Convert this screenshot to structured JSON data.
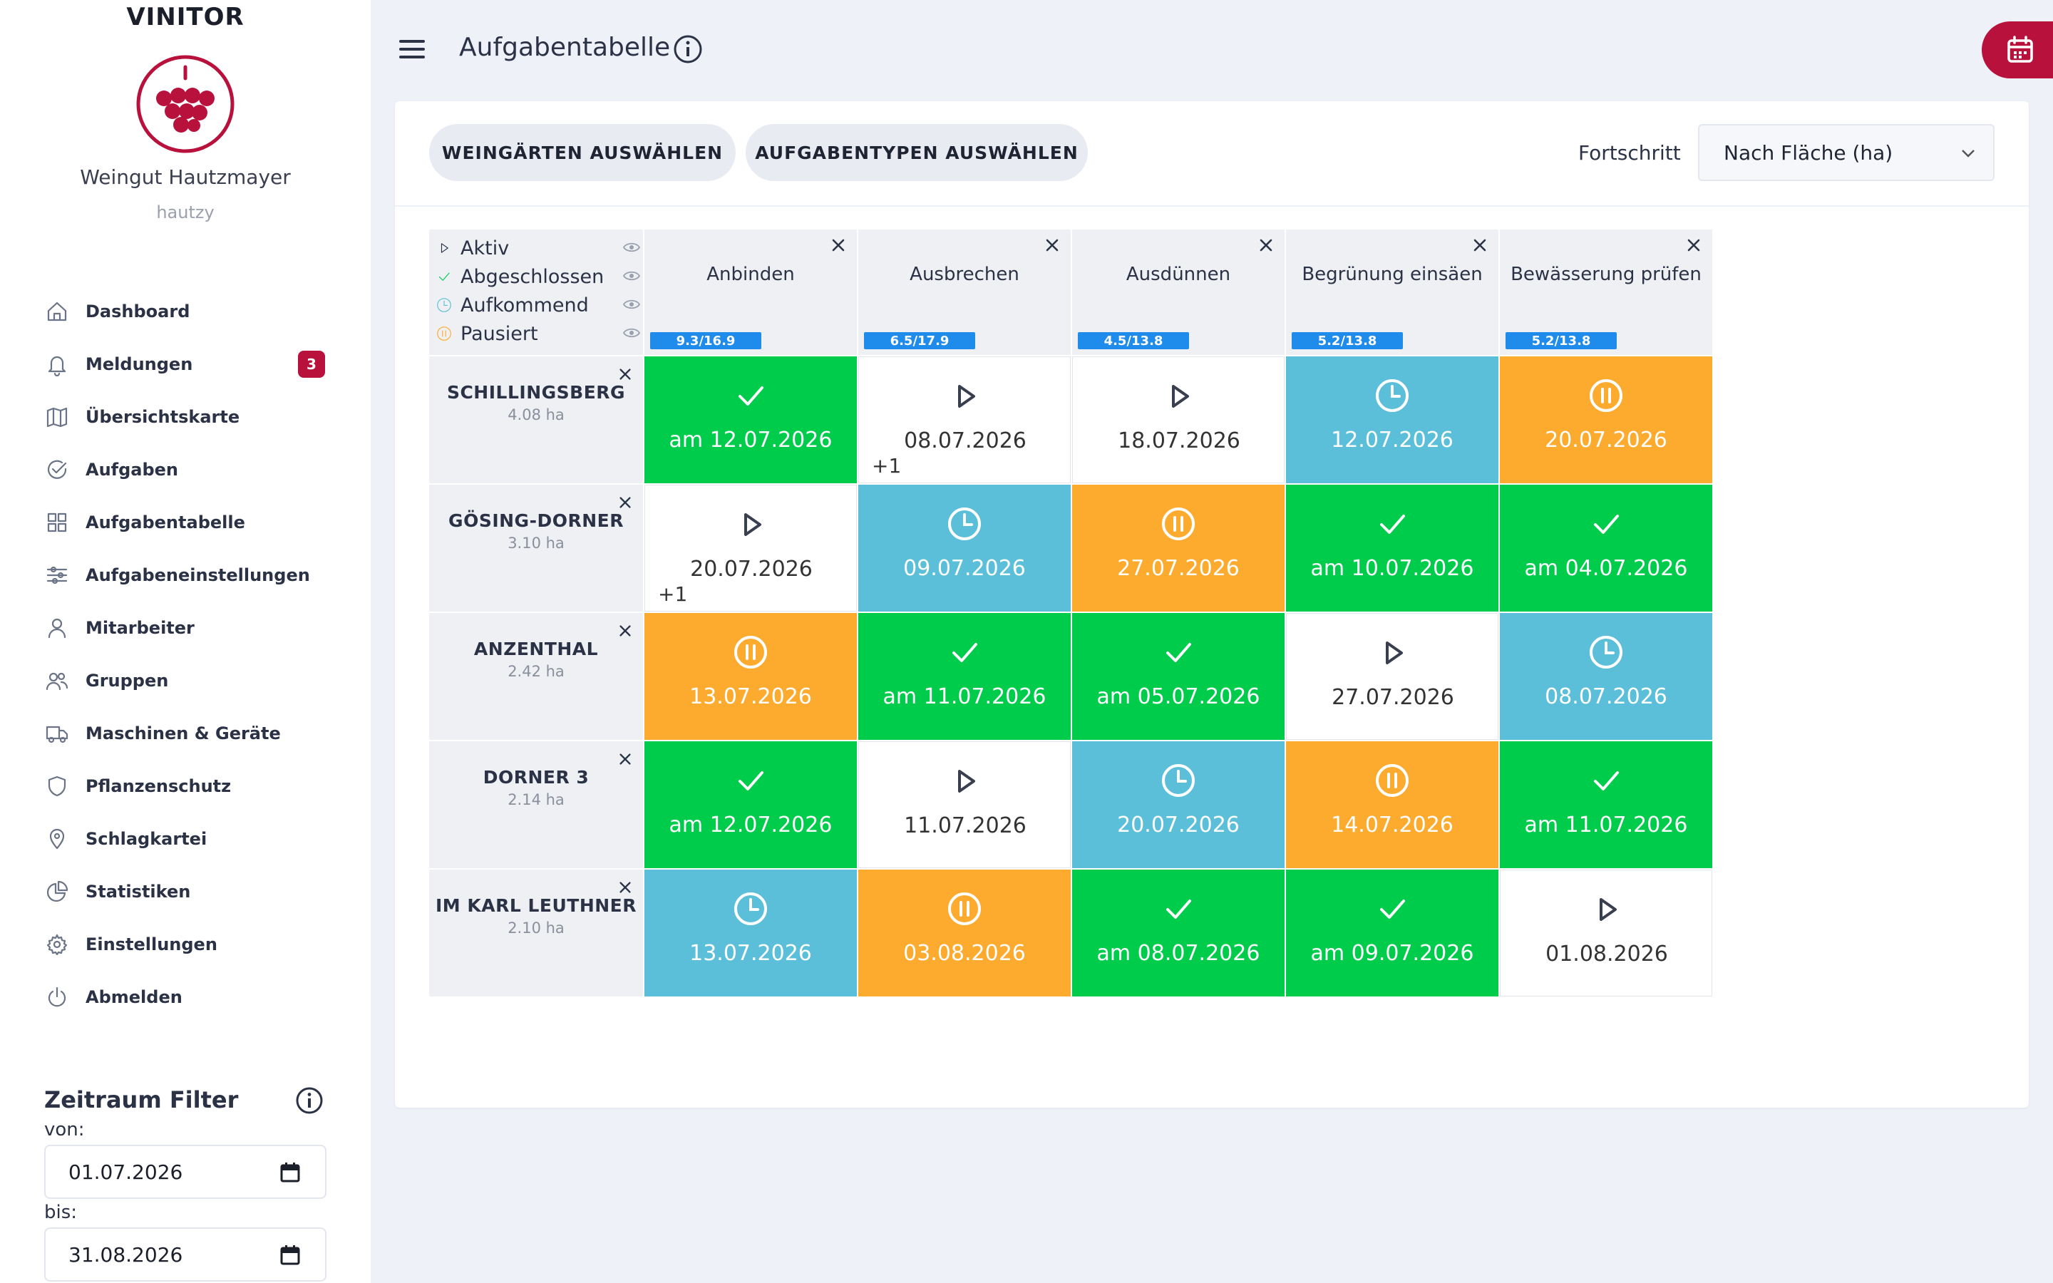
{
  "brand": "VINITOR",
  "organization": {
    "name": "Weingut Hautzmayer",
    "user": "hautzy"
  },
  "nav": [
    {
      "label": "Dashboard",
      "icon": "home-icon"
    },
    {
      "label": "Meldungen",
      "icon": "bell-icon",
      "badge": "3"
    },
    {
      "label": "Übersichtskarte",
      "icon": "map-icon"
    },
    {
      "label": "Aufgaben",
      "icon": "check-circle-icon"
    },
    {
      "label": "Aufgabentabelle",
      "icon": "grid-icon"
    },
    {
      "label": "Aufgabeneinstellungen",
      "icon": "sliders-icon"
    },
    {
      "label": "Mitarbeiter",
      "icon": "user-icon"
    },
    {
      "label": "Gruppen",
      "icon": "users-icon"
    },
    {
      "label": "Maschinen & Geräte",
      "icon": "truck-icon"
    },
    {
      "label": "Pflanzenschutz",
      "icon": "shield-icon"
    },
    {
      "label": "Schlagkartei",
      "icon": "map-pin-icon"
    },
    {
      "label": "Statistiken",
      "icon": "pie-chart-icon"
    },
    {
      "label": "Einstellungen",
      "icon": "gear-icon"
    },
    {
      "label": "Abmelden",
      "icon": "power-icon"
    }
  ],
  "filter": {
    "title": "Zeitraum Filter",
    "from_label": "von:",
    "from_value": "01.07.2026",
    "to_label": "bis:",
    "to_value": "31.08.2026"
  },
  "header": {
    "title": "Aufgabentabelle"
  },
  "toolbar": {
    "vineyards_button": "WEINGÄRTEN AUSWÄHLEN",
    "tasktypes_button": "AUFGABENTYPEN AUSWÄHLEN",
    "progress_label": "Fortschritt",
    "progress_select": "Nach Fläche (ha)"
  },
  "legend": [
    {
      "label": "Aktiv",
      "status": "active"
    },
    {
      "label": "Abgeschlossen",
      "status": "done"
    },
    {
      "label": "Aufkommend",
      "status": "upcoming"
    },
    {
      "label": "Pausiert",
      "status": "paused"
    }
  ],
  "colors": {
    "done": "#00cc4c",
    "upcoming": "#5bbfd9",
    "paused": "#fcab2e",
    "active": "#ffffff",
    "accent": "#b8123c",
    "progress": "#1f8bea"
  },
  "columns": [
    {
      "name": "Anbinden",
      "progress": "9.3/16.9"
    },
    {
      "name": "Ausbrechen",
      "progress": "6.5/17.9"
    },
    {
      "name": "Ausdünnen",
      "progress": "4.5/13.8"
    },
    {
      "name": "Begrünung einsäen",
      "progress": "5.2/13.8"
    },
    {
      "name": "Bewässerung prüfen",
      "progress": "5.2/13.8"
    }
  ],
  "rows": [
    {
      "name": "SCHILLINGSBERG",
      "area": "4.08 ha",
      "cells": [
        {
          "status": "done",
          "date": "am 12.07.2026"
        },
        {
          "status": "active",
          "date": "08.07.2026",
          "extra": "+1"
        },
        {
          "status": "active",
          "date": "18.07.2026"
        },
        {
          "status": "upcoming",
          "date": "12.07.2026"
        },
        {
          "status": "paused",
          "date": "20.07.2026"
        }
      ]
    },
    {
      "name": "GÖSING-DORNER",
      "area": "3.10 ha",
      "cells": [
        {
          "status": "active",
          "date": "20.07.2026",
          "extra": "+1"
        },
        {
          "status": "upcoming",
          "date": "09.07.2026"
        },
        {
          "status": "paused",
          "date": "27.07.2026"
        },
        {
          "status": "done",
          "date": "am 10.07.2026"
        },
        {
          "status": "done",
          "date": "am 04.07.2026"
        }
      ]
    },
    {
      "name": "ANZENTHAL",
      "area": "2.42 ha",
      "cells": [
        {
          "status": "paused",
          "date": "13.07.2026"
        },
        {
          "status": "done",
          "date": "am 11.07.2026"
        },
        {
          "status": "done",
          "date": "am 05.07.2026"
        },
        {
          "status": "active",
          "date": "27.07.2026"
        },
        {
          "status": "upcoming",
          "date": "08.07.2026"
        }
      ]
    },
    {
      "name": "DORNER 3",
      "area": "2.14 ha",
      "cells": [
        {
          "status": "done",
          "date": "am 12.07.2026"
        },
        {
          "status": "active",
          "date": "11.07.2026"
        },
        {
          "status": "upcoming",
          "date": "20.07.2026"
        },
        {
          "status": "paused",
          "date": "14.07.2026"
        },
        {
          "status": "done",
          "date": "am 11.07.2026"
        }
      ]
    },
    {
      "name": "IM KARL LEUTHNER",
      "area": "2.10 ha",
      "cells": [
        {
          "status": "upcoming",
          "date": "13.07.2026"
        },
        {
          "status": "paused",
          "date": "03.08.2026"
        },
        {
          "status": "done",
          "date": "am 08.07.2026"
        },
        {
          "status": "done",
          "date": "am 09.07.2026"
        },
        {
          "status": "active",
          "date": "01.08.2026"
        }
      ]
    }
  ]
}
